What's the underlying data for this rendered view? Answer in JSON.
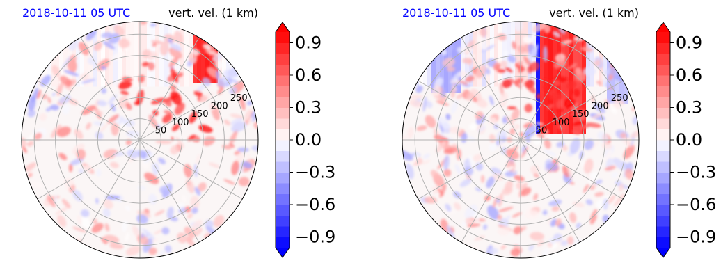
{
  "chart_data": [
    {
      "type": "heatmap",
      "projection": "polar",
      "title_left": "2018-10-11 05 UTC",
      "title_right": "vert. vel. (1 km)",
      "title_left_color": "#0000ff",
      "r_ticks": [
        "50",
        "100",
        "150",
        "200",
        "250"
      ],
      "r_tick_values": [
        50,
        100,
        150,
        200,
        250
      ],
      "r_max": 280,
      "theta_grid_deg": [
        0,
        30,
        60,
        90,
        120,
        150,
        180,
        210,
        240,
        270,
        300,
        330
      ],
      "grid": true,
      "colormap": "bwr",
      "colorbar": {
        "ticks": [
          "−0.9",
          "−0.6",
          "−0.3",
          "0.0",
          "0.3",
          "0.6",
          "0.9"
        ],
        "tick_values": [
          -0.9,
          -0.6,
          -0.3,
          0.0,
          0.3,
          0.6,
          0.9
        ],
        "range": [
          -1.0,
          1.0
        ],
        "extend": "both"
      }
    },
    {
      "type": "heatmap",
      "projection": "polar",
      "title_left": "2018-10-11 05 UTC",
      "title_right": "vert. vel. (1 km)",
      "title_left_color": "#0000ff",
      "r_ticks": [
        "50",
        "100",
        "150",
        "200",
        "250"
      ],
      "r_tick_values": [
        50,
        100,
        150,
        200,
        250
      ],
      "r_max": 280,
      "theta_grid_deg": [
        0,
        30,
        60,
        90,
        120,
        150,
        180,
        210,
        240,
        270,
        300,
        330
      ],
      "grid": true,
      "colormap": "bwr",
      "colorbar": {
        "ticks": [
          "−0.9",
          "−0.6",
          "−0.3",
          "0.0",
          "0.3",
          "0.6",
          "0.9"
        ],
        "tick_values": [
          -0.9,
          -0.6,
          -0.3,
          0.0,
          0.3,
          0.6,
          0.9
        ],
        "range": [
          -1.0,
          1.0
        ],
        "extend": "both"
      }
    }
  ]
}
